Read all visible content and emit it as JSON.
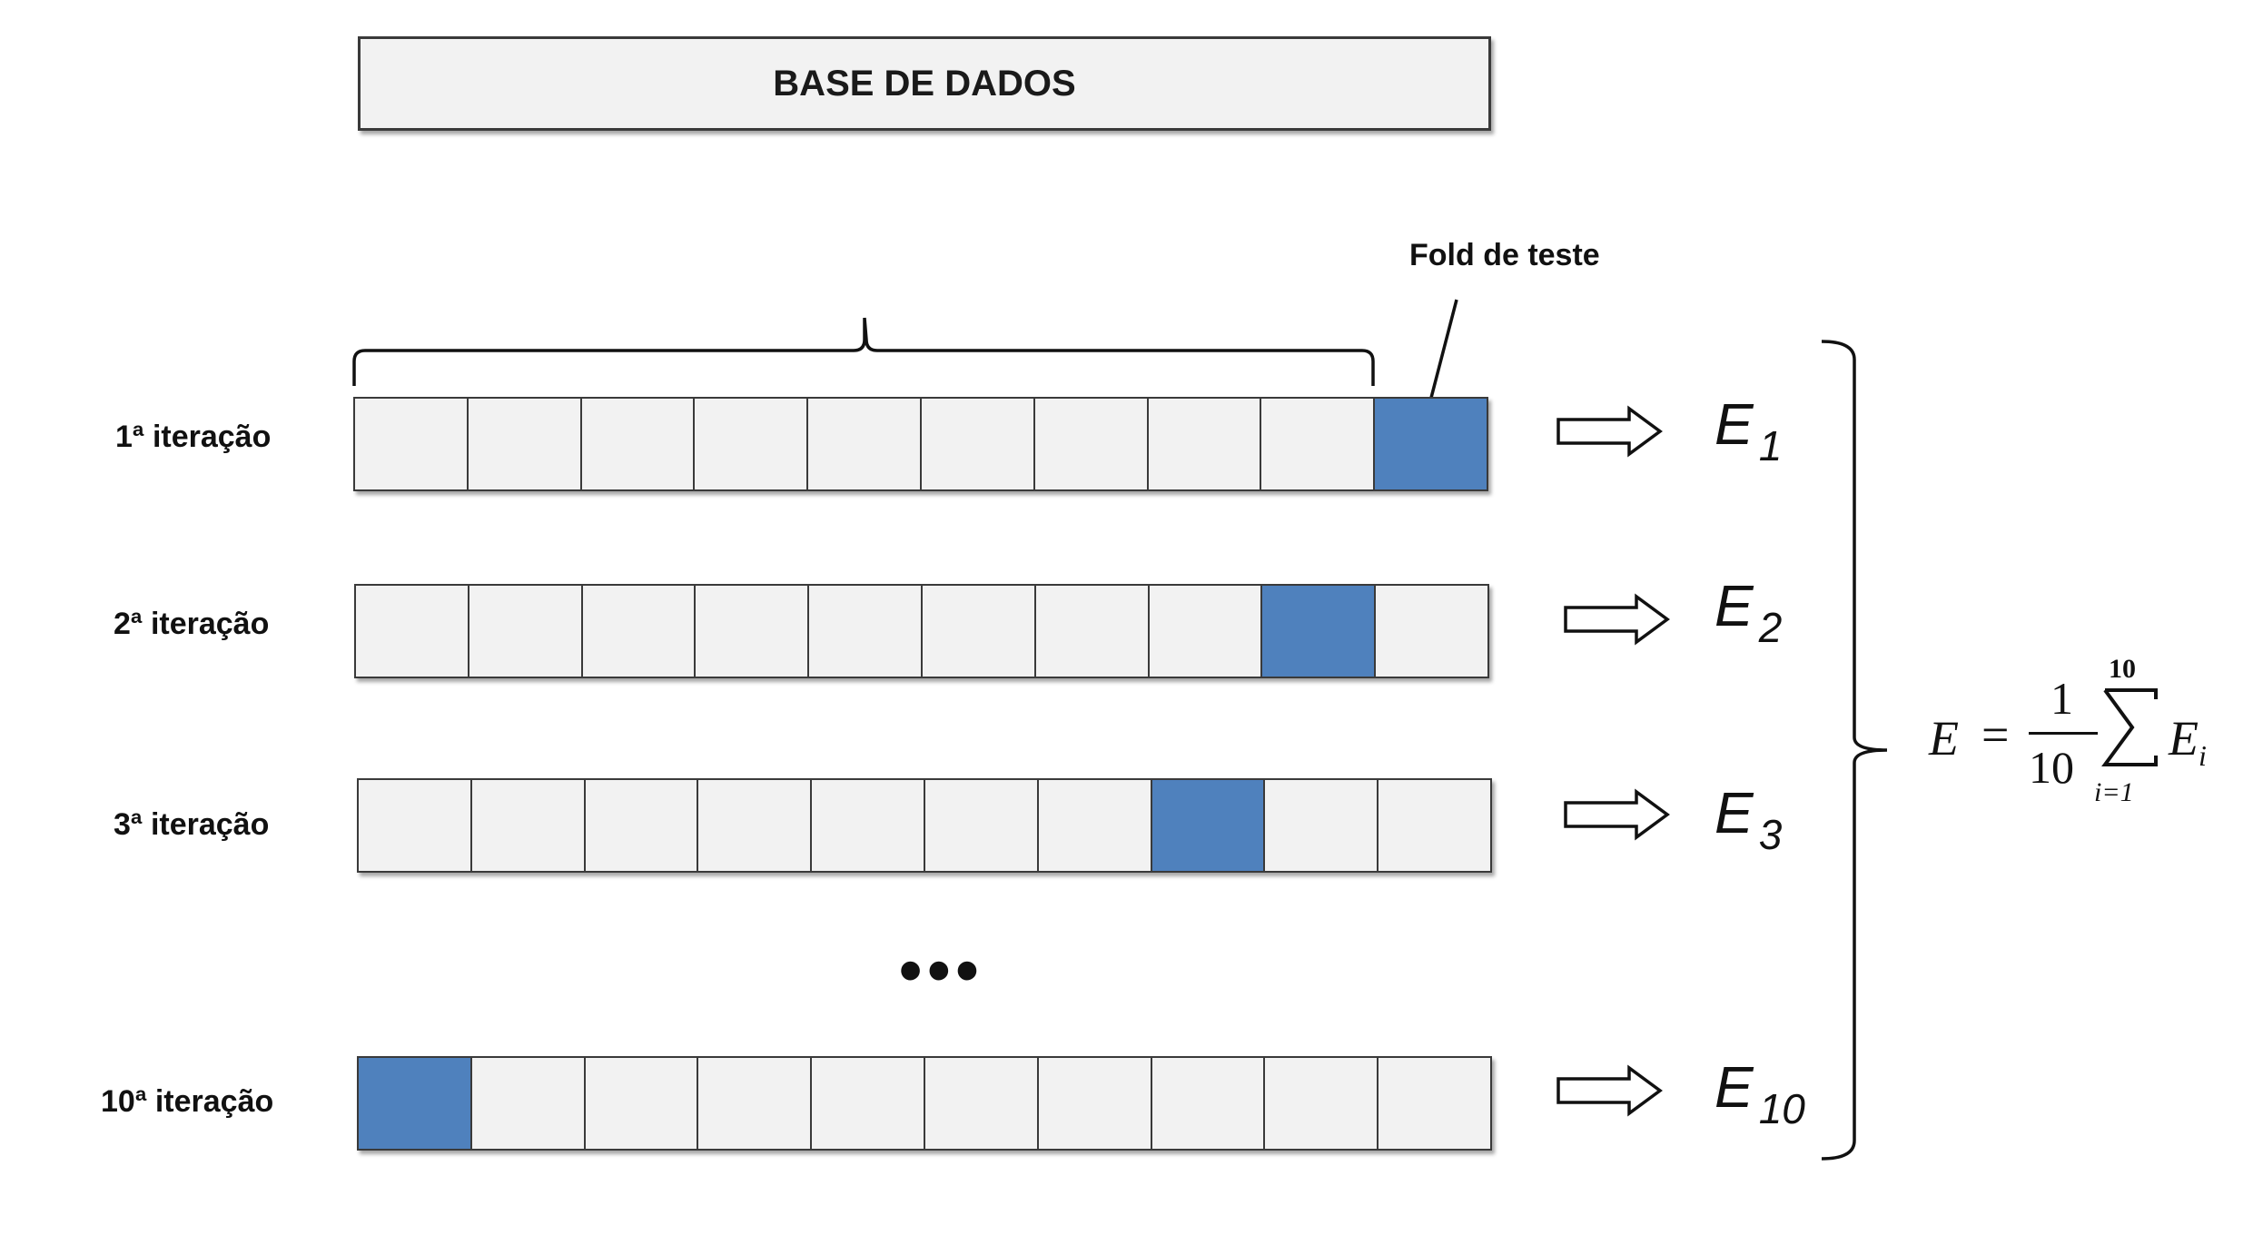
{
  "database": {
    "label": "BASE DE DADOS"
  },
  "fold_label": "Fold de teste",
  "ellipsis": "•••",
  "iterations": [
    {
      "label": "1ª iteração",
      "error": "E",
      "error_index": "1",
      "test_fold": 10
    },
    {
      "label": "2ª iteração",
      "error": "E",
      "error_index": "2",
      "test_fold": 9
    },
    {
      "label": "3ª iteração",
      "error": "E",
      "error_index": "3",
      "test_fold": 8
    },
    {
      "label": "10ª iteração",
      "error": "E",
      "error_index": "10",
      "test_fold": 1
    }
  ],
  "folds_per_row": 10,
  "colors": {
    "test_fold": "#4f81bd",
    "train_fold": "#f2f2f2",
    "border": "#3a3a3a"
  },
  "formula": {
    "lhs": "E",
    "equals": "=",
    "numerator": "1",
    "denominator": "10",
    "sum_upper": "10",
    "sum_lower": "i=1",
    "term": "E",
    "term_index": "i"
  }
}
